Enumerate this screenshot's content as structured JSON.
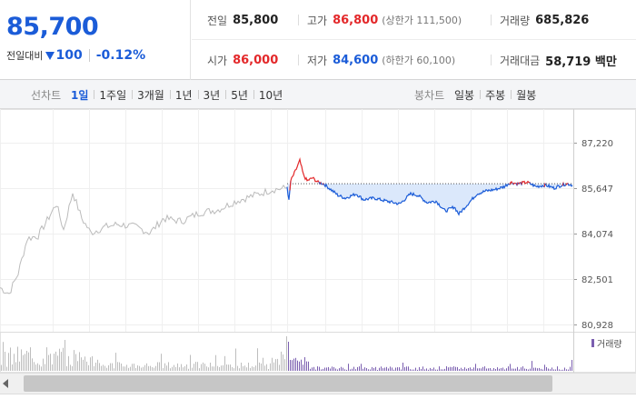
{
  "summary": {
    "price": "85,700",
    "change_label": "전일대비",
    "change_amount": "100",
    "change_percent": "-0.12%",
    "stats": [
      {
        "key": "전일",
        "value": "85,800",
        "sub": "",
        "color": "normal"
      },
      {
        "key": "고가",
        "value": "86,800",
        "sub": "(상한가 111,500)",
        "color": "red"
      },
      {
        "key": "거래량",
        "value": "685,826",
        "sub": "",
        "color": "normal"
      },
      {
        "key": "시가",
        "value": "86,000",
        "sub": "",
        "color": "red"
      },
      {
        "key": "저가",
        "value": "84,600",
        "sub": "(하한가 60,100)",
        "color": "blue"
      },
      {
        "key": "거래대금",
        "value": "58,719 백만",
        "sub": "",
        "color": "normal"
      }
    ]
  },
  "toolbar": {
    "line_label": "선차트",
    "line_periods": [
      "1일",
      "1주일",
      "3개월",
      "1년",
      "3년",
      "5년",
      "10년"
    ],
    "line_active": "1일",
    "candle_label": "봉차트",
    "candle_periods": [
      "일봉",
      "주봉",
      "월봉"
    ]
  },
  "colors": {
    "up": "#e3282a",
    "down": "#1b5cd8",
    "prev_day": "#bbbbbb",
    "fill_below": "#dbe8fb",
    "volume_today": "#7b5fb0",
    "volume_prev": "#bdbdbd"
  },
  "chart_data": {
    "type": "line",
    "y_ticks": [
      "87,220",
      "85,647",
      "84,074",
      "82,501",
      "80,928"
    ],
    "ylim": [
      80928,
      87220
    ],
    "reference_price": 85800,
    "volume_legend": "거래량"
  }
}
